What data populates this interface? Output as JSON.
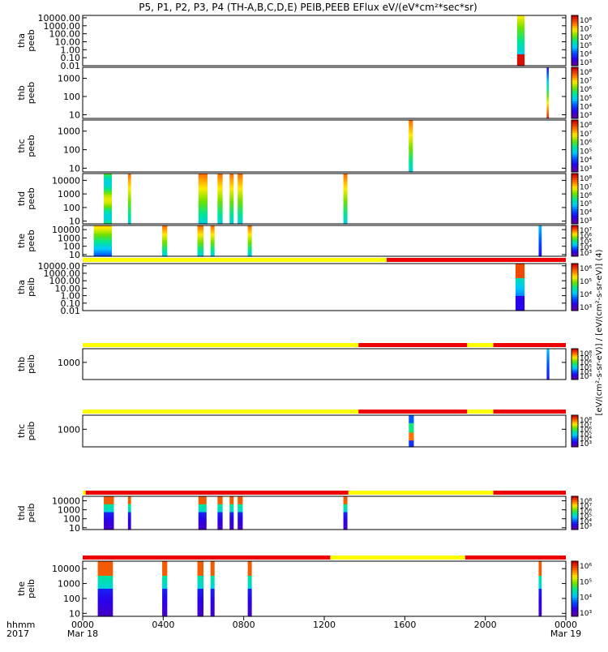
{
  "title": "P5, P1, P2, P3, P4 (TH-A,B,C,D,E) PEIB,PEEB EFlux eV/(eV*cm²*sec*sr)",
  "colorbar_unit": "[eV/(cm²-s-sr-eV)] / [eV/(cm²-s-sr-eV)] (4)",
  "x_axis": {
    "label_line1": "hhmm",
    "label_line2": "2017",
    "ticks": [
      "0000",
      "0400",
      "0800",
      "1200",
      "1600",
      "2000",
      "0000"
    ],
    "dates": [
      "Mar 18",
      "Mar 19"
    ]
  },
  "chart_data": {
    "type": "heatmap",
    "x_range_hours": [
      0,
      24
    ],
    "colormap": "rainbow (purple-blue-cyan-green-yellow-red)",
    "panels": [
      {
        "label": [
          "tha",
          "peeb"
        ],
        "yticks": [
          "10000.00",
          "1000.00",
          "100.00",
          "10.00",
          "1.00",
          "0.10",
          "0.01"
        ],
        "log_min": -2,
        "log_max": 4.3,
        "cbar": [
          "10⁸",
          "10⁷",
          "10⁶",
          "10⁵",
          "10⁴",
          "10³"
        ],
        "bursts": [
          {
            "start": 21.58,
            "end": 21.95,
            "profile": "tha_e"
          }
        ],
        "status": []
      },
      {
        "label": [
          "thb",
          "peeb"
        ],
        "yticks": [
          "1000",
          "100",
          "10"
        ],
        "log_min": 0.8,
        "log_max": 3.6,
        "cbar": [
          "10⁸",
          "10⁷",
          "10⁶",
          "10⁵",
          "10⁴",
          "10³"
        ],
        "bursts": [
          {
            "start": 23.05,
            "end": 23.15,
            "profile": "thb_e"
          }
        ],
        "status": []
      },
      {
        "label": [
          "thc",
          "peeb"
        ],
        "yticks": [
          "1000",
          "100",
          "10"
        ],
        "log_min": 0.8,
        "log_max": 3.6,
        "cbar": [
          "10⁸",
          "10⁷",
          "10⁶",
          "10⁵",
          "10⁴",
          "10³"
        ],
        "bursts": [
          {
            "start": 16.2,
            "end": 16.4,
            "profile": "warm"
          }
        ],
        "status": []
      },
      {
        "label": [
          "thd",
          "peeb"
        ],
        "yticks": [
          "10000",
          "1000",
          "100",
          "10"
        ],
        "log_min": 0.8,
        "log_max": 4.5,
        "cbar": [
          "10⁸",
          "10⁷",
          "10⁶",
          "10⁵",
          "10⁴",
          "10³"
        ],
        "bursts": [
          {
            "start": 1.05,
            "end": 1.45,
            "profile": "thd_wide"
          },
          {
            "start": 2.25,
            "end": 2.4,
            "profile": "warm"
          },
          {
            "start": 5.75,
            "end": 6.2,
            "profile": "warm"
          },
          {
            "start": 6.7,
            "end": 6.95,
            "profile": "warm"
          },
          {
            "start": 7.3,
            "end": 7.5,
            "profile": "warm"
          },
          {
            "start": 7.7,
            "end": 7.95,
            "profile": "warm"
          },
          {
            "start": 12.95,
            "end": 13.15,
            "profile": "warm"
          }
        ],
        "status": []
      },
      {
        "label": [
          "the",
          "peeb"
        ],
        "yticks": [
          "10000",
          "1000",
          "100",
          "10"
        ],
        "log_min": 0.8,
        "log_max": 4.5,
        "cbar": [
          "10⁷",
          "10⁶",
          "10⁵",
          "10⁴",
          "10³"
        ],
        "bursts": [
          {
            "start": 0.55,
            "end": 1.45,
            "profile": "the_start"
          },
          {
            "start": 3.95,
            "end": 4.2,
            "profile": "warm"
          },
          {
            "start": 5.7,
            "end": 6.0,
            "profile": "warm"
          },
          {
            "start": 6.35,
            "end": 6.55,
            "profile": "warm"
          },
          {
            "start": 8.2,
            "end": 8.4,
            "profile": "warm"
          },
          {
            "start": 22.65,
            "end": 22.8,
            "profile": "cool"
          }
        ],
        "status": []
      },
      {
        "label": [
          "tha",
          "peib"
        ],
        "yticks": [
          "10000.00",
          "1000.00",
          "100.00",
          "10.00",
          "1.00",
          "0.10",
          "0.01"
        ],
        "log_min": -2,
        "log_max": 4.3,
        "cbar": [
          "10⁶",
          "10⁵",
          "10⁴",
          "10³"
        ],
        "bursts": [
          {
            "start": 21.5,
            "end": 21.95,
            "profile": "tha_i"
          }
        ],
        "status": [
          {
            "start": 0,
            "end": 15.1,
            "state": "yellow"
          },
          {
            "start": 15.1,
            "end": 24,
            "state": "red"
          }
        ]
      },
      {
        "label": [
          "thb",
          "peib"
        ],
        "yticks": [
          "1000"
        ],
        "log_min": 2.0,
        "log_max": 3.8,
        "cbar": [
          "10⁸",
          "10⁷",
          "10⁶",
          "10⁵",
          "10⁴",
          "10³"
        ],
        "bursts": [
          {
            "start": 23.05,
            "end": 23.18,
            "profile": "cool"
          }
        ],
        "status": [
          {
            "start": 0,
            "end": 13.7,
            "state": "yellow"
          },
          {
            "start": 13.7,
            "end": 19.1,
            "state": "red"
          },
          {
            "start": 19.1,
            "end": 20.4,
            "state": "yellow"
          },
          {
            "start": 20.4,
            "end": 24,
            "state": "red"
          }
        ]
      },
      {
        "label": [
          "thc",
          "peib"
        ],
        "yticks": [
          "1000"
        ],
        "log_min": 2.0,
        "log_max": 3.8,
        "cbar": [
          "10⁸",
          "10⁷",
          "10⁶",
          "10⁵",
          "10⁴",
          "10³"
        ],
        "bursts": [
          {
            "start": 16.2,
            "end": 16.45,
            "profile": "thc_i"
          }
        ],
        "status": [
          {
            "start": 0,
            "end": 13.7,
            "state": "yellow"
          },
          {
            "start": 13.7,
            "end": 19.1,
            "state": "red"
          },
          {
            "start": 19.1,
            "end": 20.4,
            "state": "yellow"
          },
          {
            "start": 20.4,
            "end": 24,
            "state": "red"
          }
        ]
      },
      {
        "label": [
          "thd",
          "peib"
        ],
        "yticks": [
          "10000",
          "1000",
          "100",
          "10"
        ],
        "log_min": 0.8,
        "log_max": 4.5,
        "cbar": [
          "10⁸",
          "10⁷",
          "10⁶",
          "10⁵",
          "10⁴",
          "10³"
        ],
        "bursts": [
          {
            "start": 1.05,
            "end": 1.55,
            "profile": "ion"
          },
          {
            "start": 2.25,
            "end": 2.4,
            "profile": "ion"
          },
          {
            "start": 5.75,
            "end": 6.15,
            "profile": "ion"
          },
          {
            "start": 6.7,
            "end": 6.95,
            "profile": "ion"
          },
          {
            "start": 7.3,
            "end": 7.5,
            "profile": "ion"
          },
          {
            "start": 7.7,
            "end": 7.95,
            "profile": "ion"
          },
          {
            "start": 12.95,
            "end": 13.15,
            "profile": "ion"
          }
        ],
        "status": [
          {
            "start": 0,
            "end": 0.15,
            "state": "yellow"
          },
          {
            "start": 0.15,
            "end": 13.2,
            "state": "red"
          },
          {
            "start": 13.2,
            "end": 20.4,
            "state": "yellow"
          },
          {
            "start": 20.4,
            "end": 24,
            "state": "red"
          }
        ]
      },
      {
        "label": [
          "the",
          "peib"
        ],
        "yticks": [
          "10000",
          "1000",
          "100",
          "10"
        ],
        "log_min": 0.8,
        "log_max": 4.5,
        "cbar": [
          "10⁶",
          "10⁵",
          "10⁴",
          "10³"
        ],
        "bursts": [
          {
            "start": 0.75,
            "end": 1.5,
            "profile": "ion"
          },
          {
            "start": 3.95,
            "end": 4.2,
            "profile": "ion"
          },
          {
            "start": 5.7,
            "end": 6.0,
            "profile": "ion"
          },
          {
            "start": 6.35,
            "end": 6.55,
            "profile": "ion"
          },
          {
            "start": 8.2,
            "end": 8.4,
            "profile": "ion"
          },
          {
            "start": 22.65,
            "end": 22.8,
            "profile": "ion"
          }
        ],
        "status": [
          {
            "start": 0,
            "end": 12.3,
            "state": "red"
          },
          {
            "start": 12.3,
            "end": 19.0,
            "state": "yellow"
          },
          {
            "start": 19.0,
            "end": 24,
            "state": "red"
          }
        ]
      }
    ]
  }
}
